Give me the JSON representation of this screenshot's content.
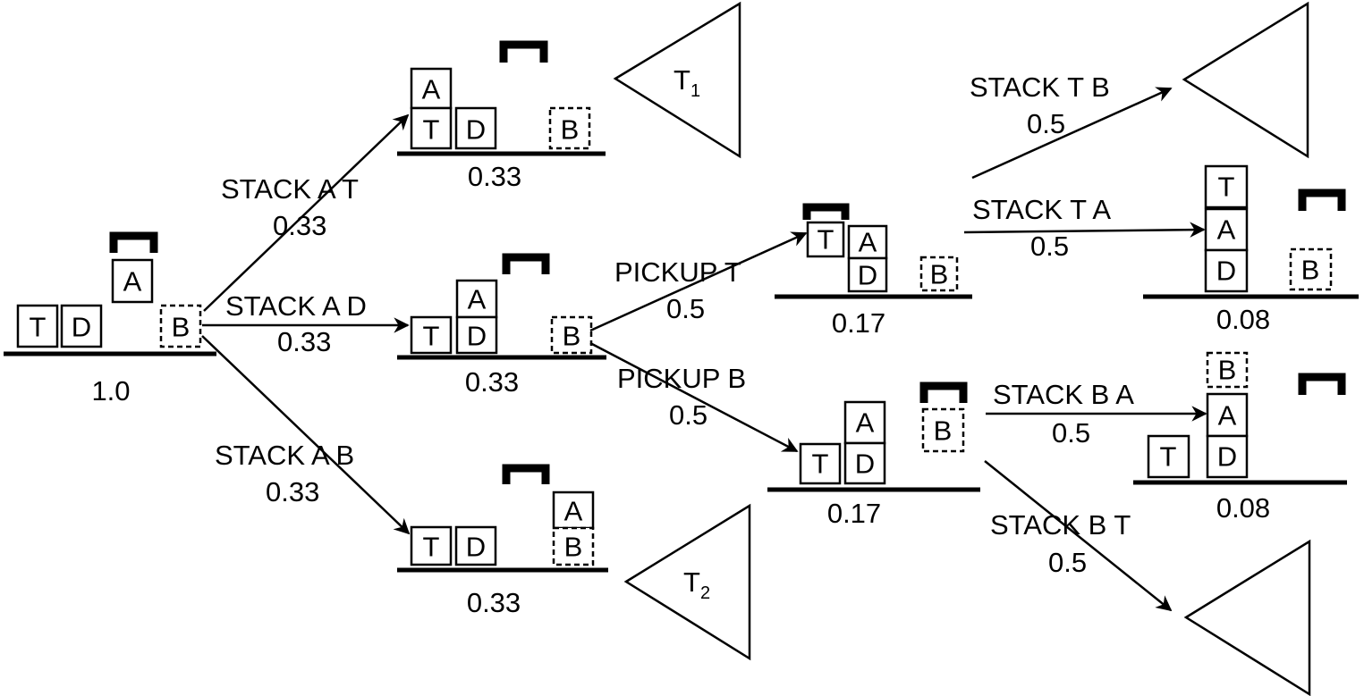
{
  "states": {
    "root": {
      "prob": "1.0",
      "blocks": [
        "T",
        "D",
        "A",
        "B"
      ]
    },
    "s_at": {
      "prob": "0.33",
      "blocks": [
        "A",
        "T",
        "D",
        "B"
      ]
    },
    "s_ad": {
      "prob": "0.33",
      "blocks": [
        "A",
        "T",
        "D",
        "B"
      ]
    },
    "s_ab": {
      "prob": "0.33",
      "blocks": [
        "T",
        "D",
        "A",
        "B"
      ]
    },
    "s_pt": {
      "prob": "0.17",
      "blocks": [
        "T",
        "A",
        "D",
        "B"
      ]
    },
    "s_pb": {
      "prob": "0.17",
      "blocks": [
        "A",
        "T",
        "D",
        "B"
      ]
    },
    "s_ta": {
      "prob": "0.08",
      "blocks": [
        "T",
        "A",
        "D",
        "B"
      ]
    },
    "s_ba": {
      "prob": "0.08",
      "blocks": [
        "B",
        "A",
        "T",
        "D"
      ]
    }
  },
  "edges": {
    "stack_a_t": {
      "action": "STACK A T",
      "prob": "0.33"
    },
    "stack_a_d": {
      "action": "STACK A D",
      "prob": "0.33"
    },
    "stack_a_b": {
      "action": "STACK A B",
      "prob": "0.33"
    },
    "pickup_t": {
      "action": "PICKUP T",
      "prob": "0.5"
    },
    "pickup_b": {
      "action": "PICKUP B",
      "prob": "0.5"
    },
    "stack_t_b": {
      "action": "STACK T B",
      "prob": "0.5"
    },
    "stack_t_a": {
      "action": "STACK T A",
      "prob": "0.5"
    },
    "stack_b_a": {
      "action": "STACK B A",
      "prob": "0.5"
    },
    "stack_b_t": {
      "action": "STACK B T",
      "prob": "0.5"
    }
  },
  "subtrees": {
    "t1": {
      "label": "T",
      "subscript": "1"
    },
    "t2": {
      "label": "T",
      "subscript": "2"
    }
  }
}
